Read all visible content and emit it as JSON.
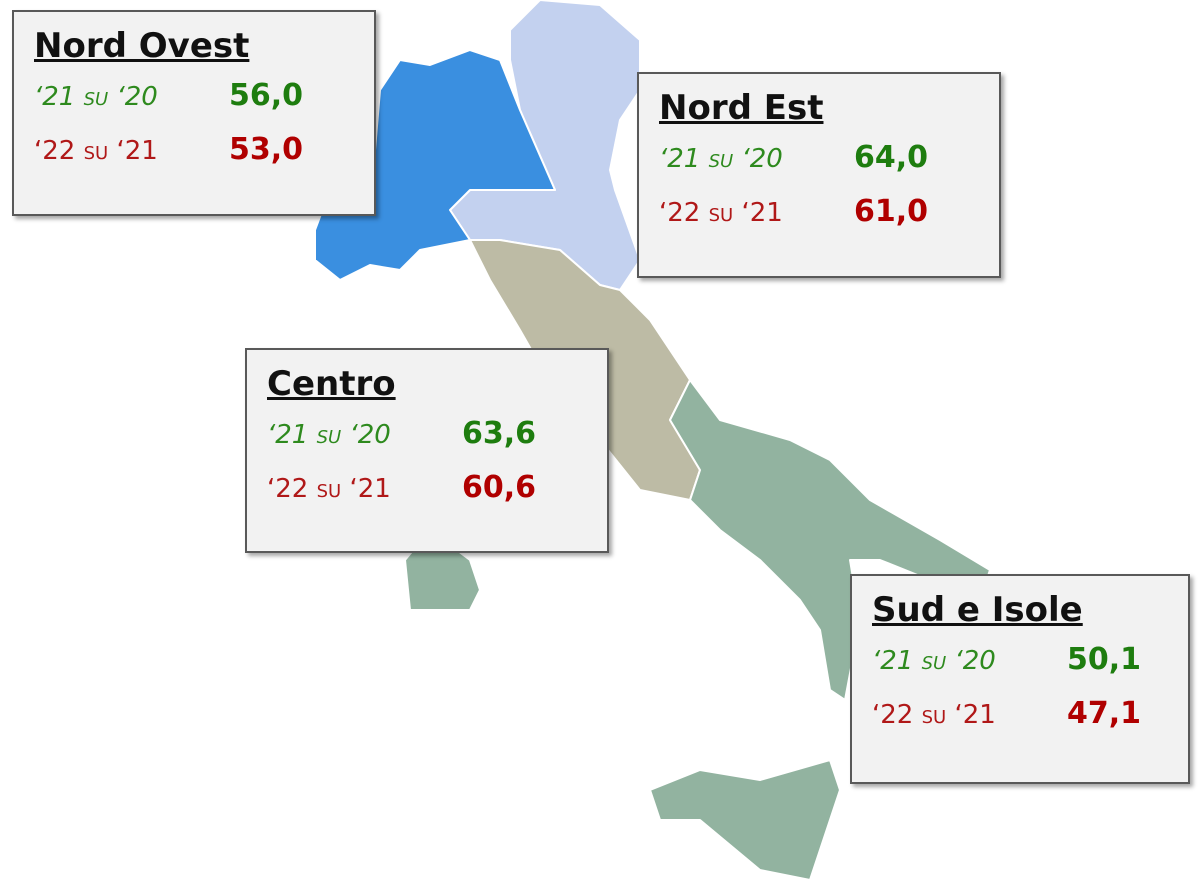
{
  "regions": [
    {
      "name": "Nord Ovest",
      "rows": [
        {
          "label": "‘21 su ‘20",
          "value": "56,0"
        },
        {
          "label": "‘22 su ‘21",
          "value": "53,0"
        }
      ]
    },
    {
      "name": "Nord Est",
      "rows": [
        {
          "label": "‘21 su ‘20",
          "value": "64,0"
        },
        {
          "label": "‘22 su ‘21",
          "value": "61,0"
        }
      ]
    },
    {
      "name": "Centro",
      "rows": [
        {
          "label": "‘21 su ‘20",
          "value": "63,6"
        },
        {
          "label": "‘22 su ‘21",
          "value": "60,6"
        }
      ]
    },
    {
      "name": "Sud e Isole",
      "rows": [
        {
          "label": "‘21 su ‘20",
          "value": "50,1"
        },
        {
          "label": "‘22 su ‘21",
          "value": "47,1"
        }
      ]
    }
  ]
}
